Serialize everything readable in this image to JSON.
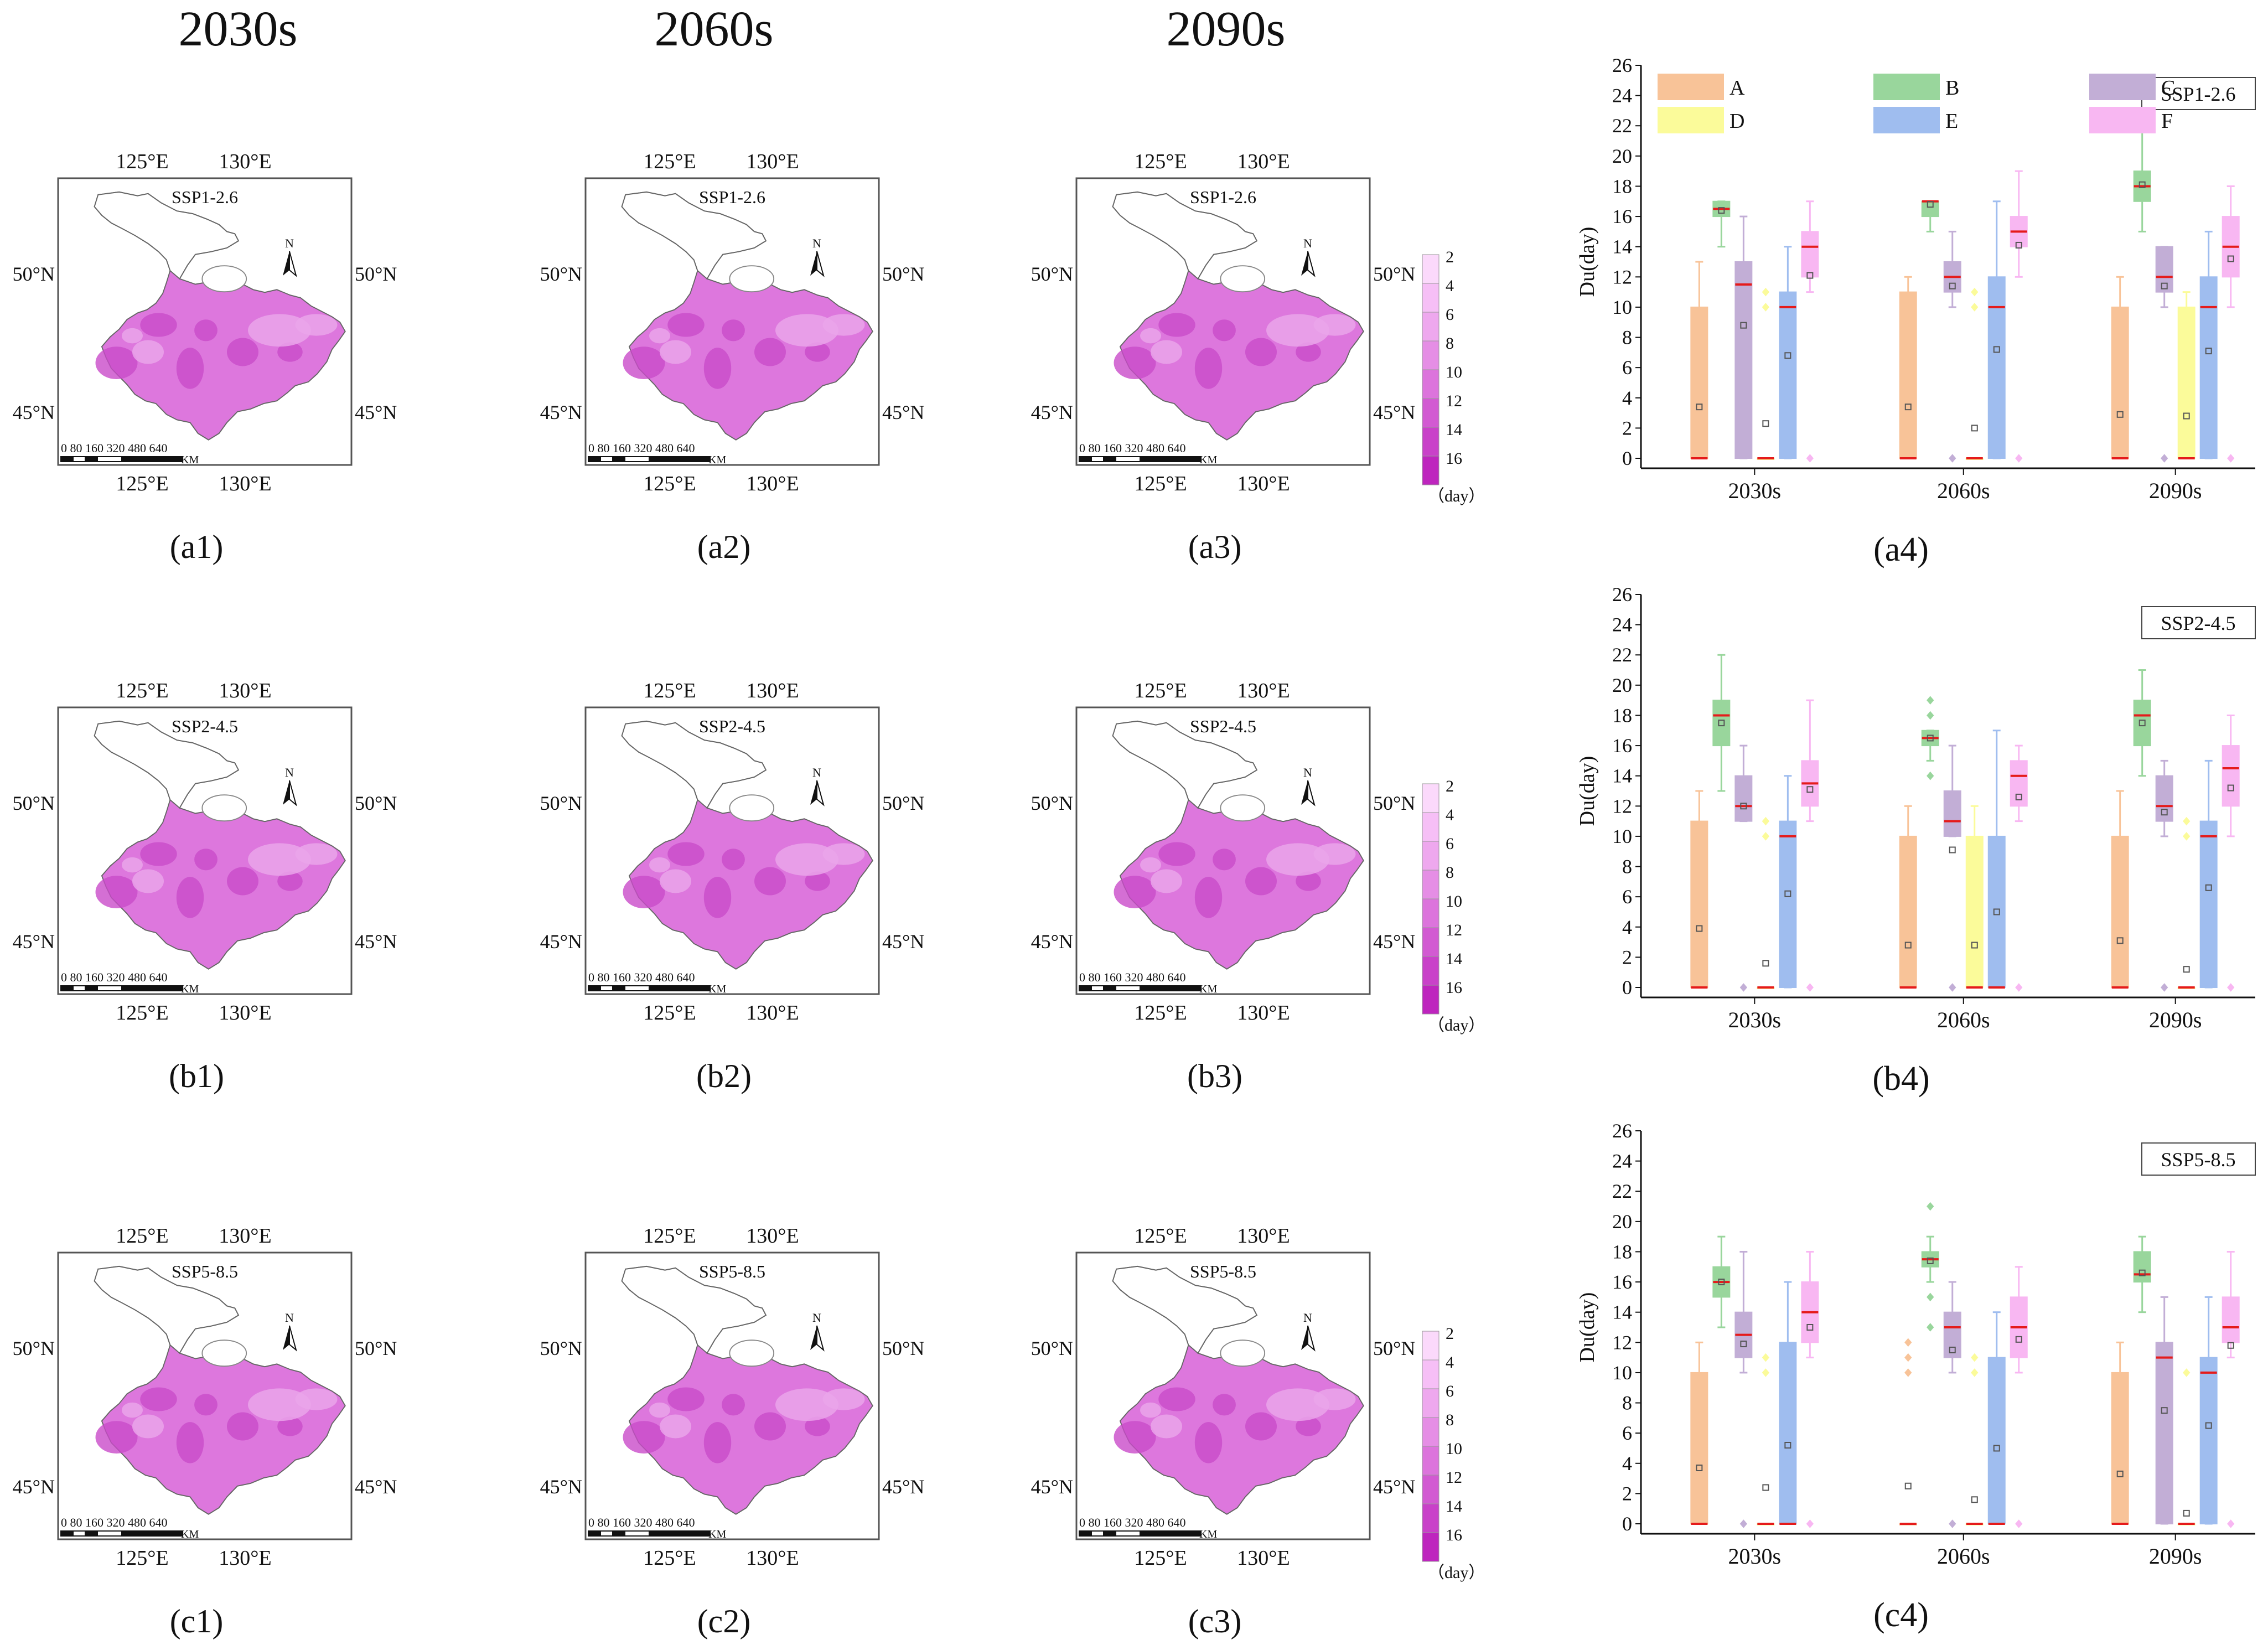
{
  "column_headers": [
    "2030s",
    "2060s",
    "2090s"
  ],
  "map_scenarios": [
    "SSP1-2.6",
    "SSP2-4.5",
    "SSP5-8.5"
  ],
  "map_top_lon_labels": [
    "125°E",
    "130°E"
  ],
  "map_bottom_lon_labels": [
    "125°E",
    "130°E"
  ],
  "map_lat_labels": [
    "50°N",
    "45°N"
  ],
  "north_label": "N",
  "scale_bar": {
    "ticks": "0 80 160 320 480 640",
    "unit": "KM"
  },
  "legend": {
    "levels": [
      "2",
      "4",
      "6",
      "8",
      "10",
      "12",
      "14",
      "16"
    ],
    "unit": "（day）"
  },
  "panel_labels": [
    [
      "(a1)",
      "(a2)",
      "(a3)",
      "(a4)"
    ],
    [
      "(b1)",
      "(b2)",
      "(b3)",
      "(b4)"
    ],
    [
      "(c1)",
      "(c2)",
      "(c3)",
      "(c4)"
    ]
  ],
  "colors": {
    "A": "#f8c398",
    "B": "#99d69c",
    "C": "#c2aed6",
    "D": "#fbfb9a",
    "E": "#9fbdef",
    "F": "#f8b7f2",
    "median": "#e51b1b",
    "map_base": "#dd77dd",
    "legend_scale": [
      "#fbd9fb",
      "#f6bff6",
      "#eea8ee",
      "#e58ee5",
      "#dc74dc",
      "#d25ad2",
      "#c941c9",
      "#be25be"
    ]
  },
  "chart_data": [
    {
      "type": "box",
      "panel": "(a4)",
      "scenario": "SSP1-2.6",
      "ylabel": "Du(day)",
      "ylim": [
        0,
        26
      ],
      "yticks": [
        0,
        2,
        4,
        6,
        8,
        10,
        12,
        14,
        16,
        18,
        20,
        22,
        24,
        26
      ],
      "periods": [
        "2030s",
        "2060s",
        "2090s"
      ],
      "series_names": [
        "A",
        "B",
        "C",
        "D",
        "E",
        "F"
      ],
      "boxes": [
        [
          {
            "q1": 0,
            "q3": 10,
            "median": 0,
            "mean": 3.4,
            "min": 0,
            "max": 13,
            "outliers": []
          },
          {
            "q1": 16,
            "q3": 17,
            "median": 16.5,
            "mean": 16.4,
            "min": 14,
            "max": 17,
            "outliers": []
          },
          {
            "q1": 0,
            "q3": 13,
            "median": 11.5,
            "mean": 8.8,
            "min": 0,
            "max": 16,
            "outliers": []
          },
          {
            "q1": 0,
            "q3": 0,
            "median": 0,
            "mean": 2.3,
            "min": 0,
            "max": 0,
            "outliers": [
              10,
              11
            ]
          },
          {
            "q1": 0,
            "q3": 11,
            "median": 10,
            "mean": 6.8,
            "min": 0,
            "max": 14,
            "outliers": []
          },
          {
            "q1": 12,
            "q3": 15,
            "median": 14,
            "mean": 12.1,
            "min": 11,
            "max": 17,
            "outliers": [
              0
            ]
          }
        ],
        [
          {
            "q1": 0,
            "q3": 11,
            "median": 0,
            "mean": 3.4,
            "min": 0,
            "max": 12,
            "outliers": []
          },
          {
            "q1": 16,
            "q3": 17,
            "median": 17,
            "mean": 16.8,
            "min": 15,
            "max": 17,
            "outliers": []
          },
          {
            "q1": 11,
            "q3": 13,
            "median": 12,
            "mean": 11.4,
            "min": 10,
            "max": 15,
            "outliers": [
              0
            ]
          },
          {
            "q1": 0,
            "q3": 0,
            "median": 0,
            "mean": 2.0,
            "min": 0,
            "max": 0,
            "outliers": [
              10,
              11
            ]
          },
          {
            "q1": 0,
            "q3": 12,
            "median": 10,
            "mean": 7.2,
            "min": 0,
            "max": 17,
            "outliers": []
          },
          {
            "q1": 14,
            "q3": 16,
            "median": 15,
            "mean": 14.1,
            "min": 12,
            "max": 19,
            "outliers": [
              0
            ]
          }
        ],
        [
          {
            "q1": 0,
            "q3": 10,
            "median": 0,
            "mean": 2.9,
            "min": 0,
            "max": 12,
            "outliers": []
          },
          {
            "q1": 17,
            "q3": 19,
            "median": 18,
            "mean": 18.1,
            "min": 15,
            "max": 22,
            "outliers": []
          },
          {
            "q1": 11,
            "q3": 14,
            "median": 12,
            "mean": 11.4,
            "min": 10,
            "max": 14,
            "outliers": [
              0
            ]
          },
          {
            "q1": 0,
            "q3": 10,
            "median": 0,
            "mean": 2.8,
            "min": 0,
            "max": 11,
            "outliers": []
          },
          {
            "q1": 0,
            "q3": 12,
            "median": 10,
            "mean": 7.1,
            "min": 0,
            "max": 15,
            "outliers": []
          },
          {
            "q1": 12,
            "q3": 16,
            "median": 14,
            "mean": 13.2,
            "min": 10,
            "max": 18,
            "outliers": [
              0
            ]
          }
        ]
      ]
    },
    {
      "type": "box",
      "panel": "(b4)",
      "scenario": "SSP2-4.5",
      "ylabel": "Du(day)",
      "ylim": [
        0,
        26
      ],
      "yticks": [
        0,
        2,
        4,
        6,
        8,
        10,
        12,
        14,
        16,
        18,
        20,
        22,
        24,
        26
      ],
      "periods": [
        "2030s",
        "2060s",
        "2090s"
      ],
      "series_names": [
        "A",
        "B",
        "C",
        "D",
        "E",
        "F"
      ],
      "boxes": [
        [
          {
            "q1": 0,
            "q3": 11,
            "median": 0,
            "mean": 3.9,
            "min": 0,
            "max": 13,
            "outliers": []
          },
          {
            "q1": 16,
            "q3": 19,
            "median": 18,
            "mean": 17.5,
            "min": 13,
            "max": 22,
            "outliers": []
          },
          {
            "q1": 11,
            "q3": 14,
            "median": 12,
            "mean": 12.0,
            "min": 11,
            "max": 16,
            "outliers": [
              0
            ]
          },
          {
            "q1": 0,
            "q3": 0,
            "median": 0,
            "mean": 1.6,
            "min": 0,
            "max": 0,
            "outliers": [
              10,
              11
            ]
          },
          {
            "q1": 0,
            "q3": 11,
            "median": 10,
            "mean": 6.2,
            "min": 0,
            "max": 14,
            "outliers": []
          },
          {
            "q1": 12,
            "q3": 15,
            "median": 13.5,
            "mean": 13.1,
            "min": 11,
            "max": 19,
            "outliers": [
              0
            ]
          }
        ],
        [
          {
            "q1": 0,
            "q3": 10,
            "median": 0,
            "mean": 2.8,
            "min": 0,
            "max": 12,
            "outliers": []
          },
          {
            "q1": 16,
            "q3": 17,
            "median": 16.5,
            "mean": 16.5,
            "min": 15,
            "max": 17,
            "outliers": [
              14,
              18,
              19
            ]
          },
          {
            "q1": 10,
            "q3": 13,
            "median": 11,
            "mean": 9.1,
            "min": 10,
            "max": 16,
            "outliers": [
              0
            ]
          },
          {
            "q1": 0,
            "q3": 10,
            "median": 0,
            "mean": 2.8,
            "min": 0,
            "max": 12,
            "outliers": []
          },
          {
            "q1": 0,
            "q3": 10,
            "median": 0,
            "mean": 5.0,
            "min": 0,
            "max": 17,
            "outliers": []
          },
          {
            "q1": 12,
            "q3": 15,
            "median": 14,
            "mean": 12.6,
            "min": 11,
            "max": 16,
            "outliers": [
              0
            ]
          }
        ],
        [
          {
            "q1": 0,
            "q3": 10,
            "median": 0,
            "mean": 3.1,
            "min": 0,
            "max": 13,
            "outliers": []
          },
          {
            "q1": 16,
            "q3": 19,
            "median": 18,
            "mean": 17.5,
            "min": 14,
            "max": 21,
            "outliers": []
          },
          {
            "q1": 11,
            "q3": 14,
            "median": 12,
            "mean": 11.6,
            "min": 10,
            "max": 15,
            "outliers": [
              0
            ]
          },
          {
            "q1": 0,
            "q3": 0,
            "median": 0,
            "mean": 1.2,
            "min": 0,
            "max": 0,
            "outliers": [
              10,
              11
            ]
          },
          {
            "q1": 0,
            "q3": 11,
            "median": 10,
            "mean": 6.6,
            "min": 0,
            "max": 15,
            "outliers": []
          },
          {
            "q1": 12,
            "q3": 16,
            "median": 14.5,
            "mean": 13.2,
            "min": 10,
            "max": 18,
            "outliers": [
              0
            ]
          }
        ]
      ]
    },
    {
      "type": "box",
      "panel": "(c4)",
      "scenario": "SSP5-8.5",
      "ylabel": "Du(day)",
      "ylim": [
        0,
        26
      ],
      "yticks": [
        0,
        2,
        4,
        6,
        8,
        10,
        12,
        14,
        16,
        18,
        20,
        22,
        24,
        26
      ],
      "periods": [
        "2030s",
        "2060s",
        "2090s"
      ],
      "series_names": [
        "A",
        "B",
        "C",
        "D",
        "E",
        "F"
      ],
      "boxes": [
        [
          {
            "q1": 0,
            "q3": 10,
            "median": 0,
            "mean": 3.7,
            "min": 0,
            "max": 12,
            "outliers": []
          },
          {
            "q1": 15,
            "q3": 17,
            "median": 16,
            "mean": 16.0,
            "min": 13,
            "max": 19,
            "outliers": []
          },
          {
            "q1": 11,
            "q3": 14,
            "median": 12.5,
            "mean": 11.9,
            "min": 10,
            "max": 18,
            "outliers": [
              0
            ]
          },
          {
            "q1": 0,
            "q3": 0,
            "median": 0,
            "mean": 2.4,
            "min": 0,
            "max": 0,
            "outliers": [
              10,
              11
            ]
          },
          {
            "q1": 0,
            "q3": 12,
            "median": 0,
            "mean": 5.2,
            "min": 0,
            "max": 16,
            "outliers": []
          },
          {
            "q1": 12,
            "q3": 16,
            "median": 14,
            "mean": 13.0,
            "min": 11,
            "max": 18,
            "outliers": [
              0
            ]
          }
        ],
        [
          {
            "q1": 0,
            "q3": 0,
            "median": 0,
            "mean": 2.5,
            "min": 0,
            "max": 0,
            "outliers": [
              10,
              11,
              12
            ]
          },
          {
            "q1": 17,
            "q3": 18,
            "median": 17.5,
            "mean": 17.4,
            "min": 16,
            "max": 19,
            "outliers": [
              13,
              15,
              21
            ]
          },
          {
            "q1": 11,
            "q3": 14,
            "median": 13,
            "mean": 11.5,
            "min": 10,
            "max": 16,
            "outliers": [
              0
            ]
          },
          {
            "q1": 0,
            "q3": 0,
            "median": 0,
            "mean": 1.6,
            "min": 0,
            "max": 0,
            "outliers": [
              10,
              11
            ]
          },
          {
            "q1": 0,
            "q3": 11,
            "median": 0,
            "mean": 5.0,
            "min": 0,
            "max": 14,
            "outliers": []
          },
          {
            "q1": 11,
            "q3": 15,
            "median": 13,
            "mean": 12.2,
            "min": 10,
            "max": 17,
            "outliers": [
              0
            ]
          }
        ],
        [
          {
            "q1": 0,
            "q3": 10,
            "median": 0,
            "mean": 3.3,
            "min": 0,
            "max": 12,
            "outliers": []
          },
          {
            "q1": 16,
            "q3": 18,
            "median": 16.5,
            "mean": 16.6,
            "min": 14,
            "max": 19,
            "outliers": []
          },
          {
            "q1": 0,
            "q3": 12,
            "median": 11,
            "mean": 7.5,
            "min": 0,
            "max": 15,
            "outliers": []
          },
          {
            "q1": 0,
            "q3": 0,
            "median": 0,
            "mean": 0.7,
            "min": 0,
            "max": 0,
            "outliers": [
              10
            ]
          },
          {
            "q1": 0,
            "q3": 11,
            "median": 10,
            "mean": 6.5,
            "min": 0,
            "max": 15,
            "outliers": []
          },
          {
            "q1": 12,
            "q3": 15,
            "median": 13,
            "mean": 11.8,
            "min": 11,
            "max": 18,
            "outliers": [
              0
            ]
          }
        ]
      ]
    }
  ]
}
